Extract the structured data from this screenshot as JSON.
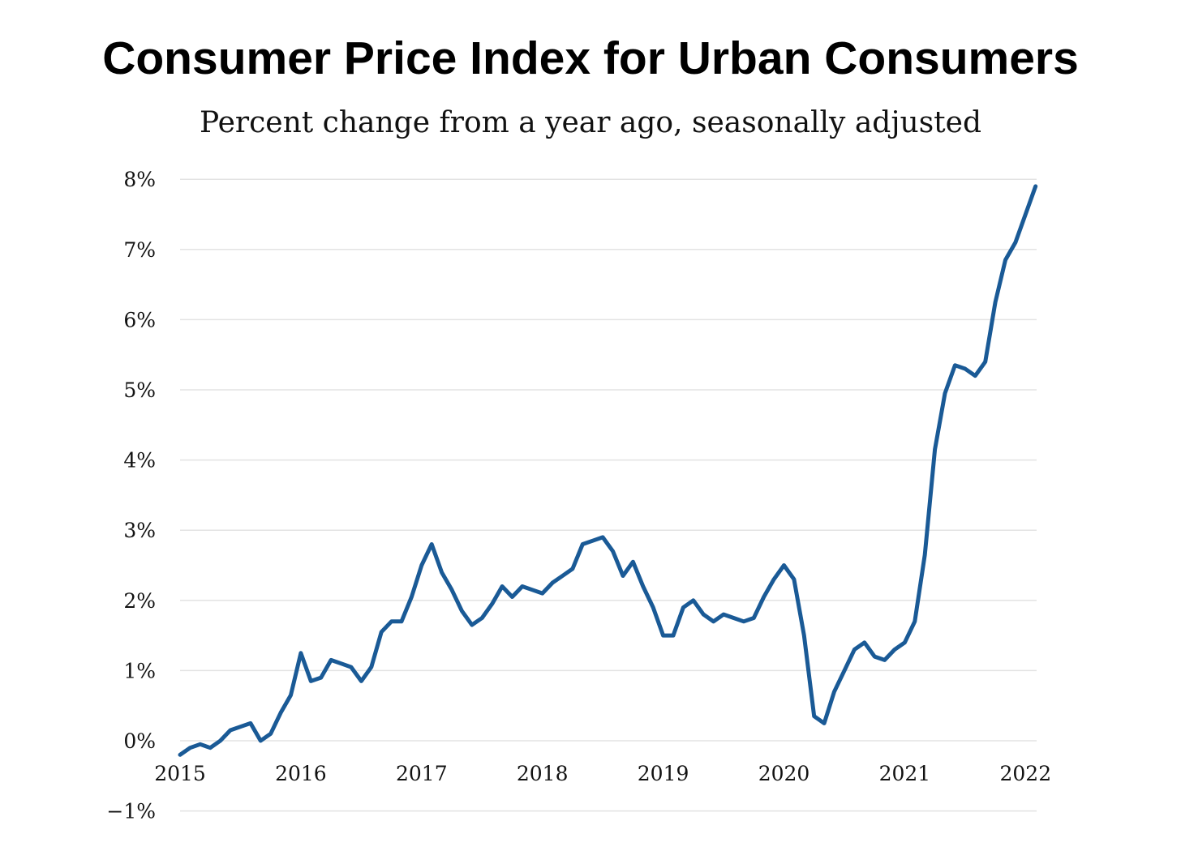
{
  "chart_data": {
    "type": "line",
    "title": "Consumer Price Index for Urban Consumers",
    "subtitle": "Percent change from a year ago, seasonally adjusted",
    "xlabel": "",
    "ylabel": "",
    "x_start": "2015-01",
    "x_frequency": "monthly",
    "xlim": [
      2015,
      2022.08
    ],
    "ylim": [
      -1,
      8
    ],
    "x_ticks": [
      "2015",
      "2016",
      "2017",
      "2018",
      "2019",
      "2020",
      "2021",
      "2022"
    ],
    "y_ticks": [
      "8%",
      "7%",
      "6%",
      "5%",
      "4%",
      "3%",
      "2%",
      "1%",
      "0%",
      "−1%"
    ],
    "y_tick_values": [
      8,
      7,
      6,
      5,
      4,
      3,
      2,
      1,
      0,
      -1
    ],
    "grid": "horizontal",
    "legend": "none",
    "color": "#1a5a96",
    "series": [
      {
        "values": [
          -0.2,
          -0.1,
          -0.05,
          -0.1,
          0.0,
          0.15,
          0.2,
          0.25,
          0.0,
          0.1,
          0.4,
          0.65,
          1.25,
          0.85,
          0.9,
          1.15,
          1.1,
          1.05,
          0.85,
          1.05,
          1.55,
          1.7,
          1.7,
          2.05,
          2.5,
          2.8,
          2.4,
          2.15,
          1.85,
          1.65,
          1.75,
          1.95,
          2.2,
          2.05,
          2.2,
          2.15,
          2.1,
          2.25,
          2.35,
          2.45,
          2.8,
          2.85,
          2.9,
          2.7,
          2.35,
          2.55,
          2.2,
          1.9,
          1.5,
          1.5,
          1.9,
          2.0,
          1.8,
          1.7,
          1.8,
          1.75,
          1.7,
          1.75,
          2.05,
          2.3,
          2.5,
          2.3,
          1.5,
          0.35,
          0.25,
          0.7,
          1.0,
          1.3,
          1.4,
          1.2,
          1.15,
          1.3,
          1.4,
          1.7,
          2.65,
          4.15,
          4.95,
          5.35,
          5.3,
          5.2,
          5.4,
          6.25,
          6.85,
          7.1,
          7.5,
          7.9
        ]
      }
    ]
  }
}
